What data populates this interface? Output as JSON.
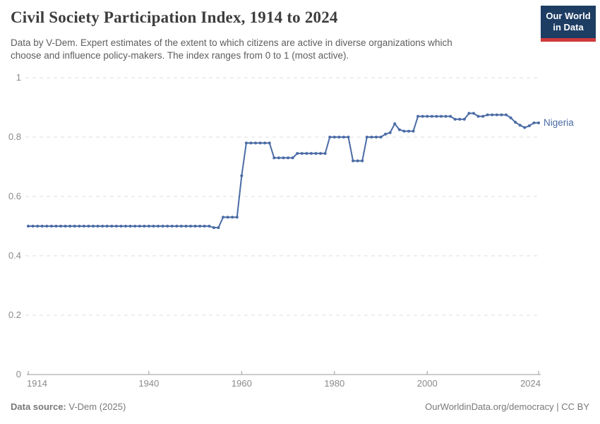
{
  "header": {
    "title": "Civil Society Participation Index, 1914 to 2024",
    "subtitle_line1": "Data by V-Dem. Expert estimates of the extent to which citizens are active in diverse organizations which",
    "subtitle_line2": "choose and influence policy-makers. The index ranges from 0 to 1 (most active).",
    "logo": {
      "line1": "Our World",
      "line2": "in Data",
      "bg_color": "#1d3d63",
      "accent_color": "#d0393c"
    }
  },
  "chart_data": {
    "type": "line",
    "title": "Civil Society Participation Index, 1914 to 2024",
    "xlabel": "",
    "ylabel": "",
    "xlim": [
      1914,
      2024
    ],
    "ylim": [
      0,
      1
    ],
    "xticks": [
      1914,
      1940,
      1960,
      1980,
      2000,
      2024
    ],
    "yticks": [
      0,
      0.2,
      0.4,
      0.6,
      0.8,
      1
    ],
    "ytick_labels": [
      "0",
      "0.2",
      "0.4",
      "0.6",
      "0.8",
      "1"
    ],
    "grid": "dashed horizontal gridlines",
    "legend_position": "label at end of line",
    "series": [
      {
        "name": "Nigeria",
        "color": "#4a6ba5",
        "x_start": 1914,
        "x_step": 1,
        "values": [
          0.5,
          0.5,
          0.5,
          0.5,
          0.5,
          0.5,
          0.5,
          0.5,
          0.5,
          0.5,
          0.5,
          0.5,
          0.5,
          0.5,
          0.5,
          0.5,
          0.5,
          0.5,
          0.5,
          0.5,
          0.5,
          0.5,
          0.5,
          0.5,
          0.5,
          0.5,
          0.5,
          0.5,
          0.5,
          0.5,
          0.5,
          0.5,
          0.5,
          0.5,
          0.5,
          0.5,
          0.5,
          0.5,
          0.5,
          0.5,
          0.495,
          0.495,
          0.53,
          0.53,
          0.53,
          0.53,
          0.67,
          0.78,
          0.78,
          0.78,
          0.78,
          0.78,
          0.78,
          0.73,
          0.73,
          0.73,
          0.73,
          0.73,
          0.745,
          0.745,
          0.745,
          0.745,
          0.745,
          0.745,
          0.745,
          0.8,
          0.8,
          0.8,
          0.8,
          0.8,
          0.72,
          0.72,
          0.72,
          0.8,
          0.8,
          0.8,
          0.8,
          0.81,
          0.815,
          0.845,
          0.825,
          0.82,
          0.82,
          0.82,
          0.87,
          0.87,
          0.87,
          0.87,
          0.87,
          0.87,
          0.87,
          0.87,
          0.86,
          0.86,
          0.86,
          0.88,
          0.88,
          0.87,
          0.87,
          0.875,
          0.875,
          0.875,
          0.875,
          0.875,
          0.865,
          0.85,
          0.84,
          0.832,
          0.838,
          0.848,
          0.848
        ]
      }
    ],
    "colors": {
      "gridline": "#dcdcdc",
      "axis": "#9a9a9a",
      "tick_label": "#8a8a8a"
    }
  },
  "footer": {
    "datasource_label": "Data source:",
    "datasource_value": "V-Dem (2025)",
    "license": "OurWorldinData.org/democracy | CC BY"
  }
}
